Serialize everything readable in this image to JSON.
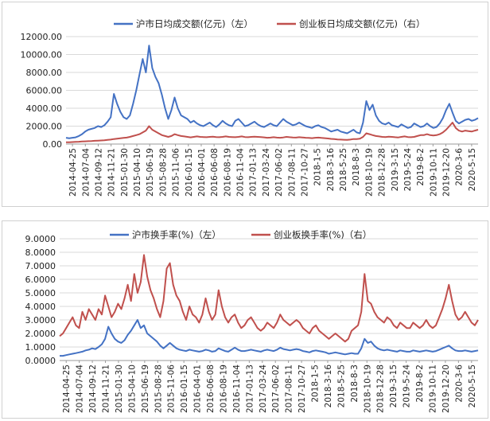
{
  "chart_data": [
    {
      "type": "line",
      "title": "",
      "xlabel": "",
      "ylabel": "",
      "ylim": [
        0,
        12000
      ],
      "yticks": [
        "0.00",
        "2000.00",
        "4000.00",
        "6000.00",
        "8000.00",
        "10000.00",
        "12000.00"
      ],
      "xtick_labels": [
        "2014-04-25",
        "2014-07-04",
        "2014-09-12",
        "2014-11-21",
        "2015-01-30",
        "2015-04-10",
        "2015-06-19",
        "2015-08-28",
        "2015-11-06",
        "2016-01-15",
        "2016-04-01",
        "2016-06-08",
        "2016-08-19",
        "2016-11-04",
        "2017-01-13",
        "2017-03-24",
        "2017-06-02",
        "2017-08-11",
        "2017-10-27",
        "2018-1-5",
        "2018-3-16",
        "2018-5-25",
        "2018-8-3",
        "2018-10-19",
        "2018-12-28",
        "2019-3-15",
        "2019-5-24",
        "2019-8-2",
        "2019-10-11",
        "2019-12-20",
        "2020-3-6",
        "2020-5-15"
      ],
      "legend": "top",
      "grid": "horizontal",
      "series": [
        {
          "name": "沪市日均成交额(亿元)（左）",
          "color": "#4472C4",
          "values": [
            700,
            650,
            700,
            750,
            900,
            1100,
            1400,
            1600,
            1700,
            1800,
            2000,
            1900,
            2100,
            2500,
            3000,
            5600,
            4500,
            3600,
            3000,
            2800,
            3200,
            4500,
            6000,
            7800,
            9500,
            8000,
            11000,
            8500,
            7500,
            6800,
            5500,
            4000,
            2800,
            3800,
            5200,
            4000,
            3200,
            3000,
            2800,
            2400,
            2600,
            2300,
            2100,
            2000,
            2200,
            2400,
            2100,
            1900,
            2200,
            2600,
            2300,
            2100,
            2000,
            2600,
            2800,
            2400,
            2000,
            2100,
            2300,
            2500,
            2200,
            2000,
            1900,
            2100,
            2300,
            2100,
            2000,
            2400,
            2800,
            2500,
            2300,
            2100,
            2200,
            2400,
            2200,
            2000,
            1900,
            1800,
            2000,
            2100,
            1900,
            1800,
            1600,
            1400,
            1500,
            1600,
            1400,
            1300,
            1200,
            1400,
            1600,
            1300,
            1200,
            2400,
            4800,
            3800,
            4400,
            3200,
            2600,
            2300,
            2200,
            2400,
            2100,
            2000,
            1900,
            2200,
            2000,
            1800,
            1900,
            2300,
            2100,
            1900,
            2000,
            2300,
            2000,
            1800,
            1900,
            2300,
            2900,
            3800,
            4500,
            3500,
            2600,
            2300,
            2500,
            2700,
            2800,
            2600,
            2700,
            2900
          ]
        },
        {
          "name": "创业板日均成交额(亿元)（右）",
          "color": "#C0504D",
          "values": [
            200,
            200,
            220,
            240,
            260,
            280,
            300,
            320,
            340,
            360,
            380,
            400,
            420,
            460,
            500,
            560,
            600,
            640,
            680,
            720,
            800,
            900,
            1000,
            1100,
            1300,
            1500,
            2000,
            1600,
            1400,
            1200,
            1000,
            900,
            800,
            900,
            1100,
            1000,
            900,
            850,
            800,
            750,
            800,
            850,
            800,
            780,
            760,
            800,
            820,
            780,
            760,
            800,
            850,
            800,
            780,
            760,
            800,
            850,
            780,
            760,
            800,
            820,
            800,
            780,
            750,
            700,
            720,
            760,
            720,
            700,
            740,
            800,
            760,
            740,
            720,
            760,
            740,
            700,
            680,
            660,
            700,
            720,
            680,
            660,
            620,
            580,
            560,
            520,
            500,
            480,
            460,
            500,
            560,
            560,
            600,
            800,
            1200,
            1100,
            1000,
            900,
            850,
            800,
            780,
            820,
            800,
            760,
            740,
            800,
            850,
            780,
            760,
            800,
            900,
            1000,
            1000,
            1100,
            1000,
            950,
            1000,
            1100,
            1300,
            1600,
            2000,
            2400,
            1800,
            1500,
            1400,
            1500,
            1450,
            1400,
            1500,
            1600
          ]
        }
      ]
    },
    {
      "type": "line",
      "title": "",
      "xlabel": "",
      "ylabel": "",
      "ylim": [
        0,
        9
      ],
      "yticks": [
        "0.0000",
        "1.0000",
        "2.0000",
        "3.0000",
        "4.0000",
        "5.0000",
        "6.0000",
        "7.0000",
        "8.0000",
        "9.0000"
      ],
      "xtick_labels": [
        "2014-04-25",
        "2014-07-04",
        "2014-09-12",
        "2014-11-21",
        "2015-01-30",
        "2015-04-10",
        "2015-06-19",
        "2015-08-28",
        "2015-11-06",
        "2016-01-15",
        "2016-04-01",
        "2016-06-08",
        "2016-08-19",
        "2016-11-04",
        "2017-01-13",
        "2017-03-24",
        "2017-06-02",
        "2017-08-11",
        "2017-10-27",
        "2018-1-5",
        "2018-3-16",
        "2018-5-25",
        "2018-8-3",
        "2018-10-19",
        "2018-12-28",
        "2019-3-15",
        "2019-5-24",
        "2019-8-2",
        "2019-10-11",
        "2019-12-20",
        "2020-3-6",
        "2020-5-15"
      ],
      "legend": "top",
      "grid": "horizontal",
      "series": [
        {
          "name": "沪市换手率(%)（左）",
          "color": "#4472C4",
          "values": [
            0.35,
            0.35,
            0.4,
            0.45,
            0.5,
            0.55,
            0.6,
            0.65,
            0.75,
            0.8,
            0.9,
            0.85,
            1.0,
            1.2,
            1.6,
            2.5,
            2.0,
            1.6,
            1.4,
            1.3,
            1.5,
            1.9,
            2.2,
            2.6,
            3.0,
            2.4,
            2.6,
            2.0,
            1.8,
            1.6,
            1.4,
            1.1,
            0.9,
            1.1,
            1.3,
            1.1,
            0.9,
            0.8,
            0.75,
            0.7,
            0.8,
            0.75,
            0.7,
            0.65,
            0.7,
            0.8,
            0.75,
            0.65,
            0.7,
            0.9,
            0.8,
            0.7,
            0.65,
            0.8,
            0.95,
            0.8,
            0.7,
            0.7,
            0.75,
            0.8,
            0.75,
            0.7,
            0.65,
            0.75,
            0.8,
            0.75,
            0.7,
            0.8,
            0.95,
            0.85,
            0.8,
            0.75,
            0.8,
            0.85,
            0.8,
            0.7,
            0.65,
            0.6,
            0.7,
            0.75,
            0.7,
            0.65,
            0.6,
            0.5,
            0.55,
            0.6,
            0.55,
            0.5,
            0.45,
            0.5,
            0.55,
            0.5,
            0.5,
            0.9,
            1.6,
            1.3,
            1.4,
            1.1,
            0.9,
            0.8,
            0.75,
            0.8,
            0.75,
            0.7,
            0.65,
            0.75,
            0.7,
            0.65,
            0.65,
            0.75,
            0.7,
            0.65,
            0.7,
            0.75,
            0.7,
            0.65,
            0.7,
            0.8,
            0.9,
            1.0,
            1.1,
            0.9,
            0.75,
            0.7,
            0.7,
            0.75,
            0.7,
            0.65,
            0.7,
            0.75
          ]
        },
        {
          "name": "创业板换手率(%)（右）",
          "color": "#C0504D",
          "values": [
            1.8,
            2.0,
            2.4,
            2.8,
            3.2,
            2.6,
            2.4,
            3.6,
            3.0,
            3.8,
            3.4,
            3.0,
            3.8,
            3.4,
            4.8,
            4.0,
            3.2,
            3.6,
            4.2,
            3.8,
            4.6,
            5.6,
            4.4,
            6.4,
            5.0,
            5.8,
            7.8,
            6.2,
            5.2,
            4.6,
            3.8,
            3.2,
            4.4,
            6.8,
            7.2,
            5.6,
            4.8,
            4.4,
            3.6,
            3.0,
            4.0,
            3.4,
            3.2,
            2.8,
            3.4,
            4.6,
            3.6,
            3.0,
            3.4,
            5.2,
            4.0,
            3.2,
            2.8,
            3.2,
            3.4,
            2.8,
            2.4,
            2.6,
            3.0,
            3.2,
            2.8,
            2.4,
            2.2,
            2.4,
            2.8,
            2.6,
            2.4,
            2.8,
            3.4,
            3.0,
            2.8,
            2.6,
            2.8,
            3.0,
            2.8,
            2.4,
            2.2,
            2.0,
            2.4,
            2.6,
            2.2,
            2.0,
            1.8,
            1.6,
            1.8,
            2.0,
            1.8,
            1.6,
            1.4,
            1.6,
            2.2,
            2.4,
            2.6,
            3.6,
            6.4,
            4.4,
            4.2,
            3.6,
            3.2,
            3.0,
            2.8,
            3.2,
            3.0,
            2.6,
            2.4,
            2.8,
            2.6,
            2.4,
            2.4,
            2.8,
            2.6,
            2.4,
            2.6,
            3.0,
            2.6,
            2.4,
            2.6,
            3.2,
            3.8,
            4.6,
            5.6,
            4.4,
            3.4,
            3.0,
            3.2,
            3.6,
            3.2,
            2.8,
            2.6,
            3.0
          ]
        }
      ]
    }
  ]
}
